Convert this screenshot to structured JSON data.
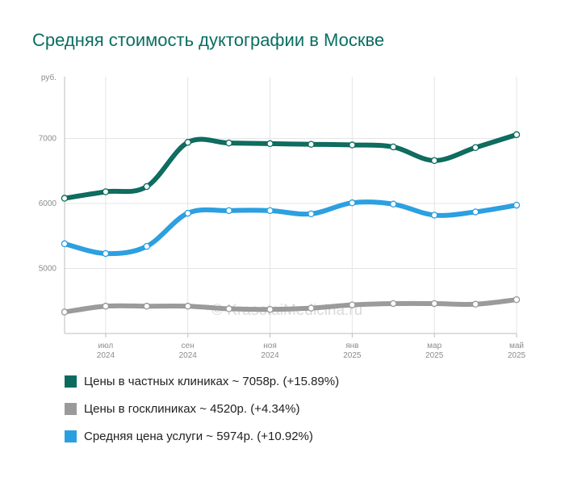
{
  "title": "Средняя стоимость дуктографии в Москве",
  "watermark": "© KrasotaiMedicina.ru",
  "chart_data": {
    "type": "line",
    "title": "Средняя стоимость дуктографии в Москве",
    "ylabel": "руб.",
    "ylim": [
      4000,
      7950
    ],
    "yticks": [
      5000,
      6000,
      7000
    ],
    "grid": true,
    "x": [
      "2024-06",
      "2024-07",
      "2024-08",
      "2024-09",
      "2024-10",
      "2024-11",
      "2024-12",
      "2025-01",
      "2025-02",
      "2025-03",
      "2025-04",
      "2025-05"
    ],
    "xtick_labels": [
      {
        "index": 1,
        "month": "июл",
        "year": "2024"
      },
      {
        "index": 3,
        "month": "сен",
        "year": "2024"
      },
      {
        "index": 5,
        "month": "ноя",
        "year": "2024"
      },
      {
        "index": 7,
        "month": "янв",
        "year": "2025"
      },
      {
        "index": 9,
        "month": "мар",
        "year": "2025"
      },
      {
        "index": 11,
        "month": "май",
        "year": "2025"
      }
    ],
    "series": [
      {
        "name": "Цены в частных клиниках",
        "color": "#0d6b5e",
        "values": [
          6080,
          6180,
          6260,
          6940,
          6930,
          6920,
          6910,
          6900,
          6870,
          6660,
          6860,
          7058
        ]
      },
      {
        "name": "Цены в госклиниках",
        "color": "#9a9a9a",
        "values": [
          4330,
          4420,
          4420,
          4420,
          4380,
          4370,
          4390,
          4440,
          4460,
          4460,
          4450,
          4520
        ]
      },
      {
        "name": "Средняя цена услуги",
        "color": "#2a9fe0",
        "values": [
          5380,
          5230,
          5340,
          5850,
          5890,
          5890,
          5840,
          6010,
          5990,
          5820,
          5870,
          5974
        ]
      }
    ],
    "legend_position": "bottom-left"
  },
  "legend": [
    {
      "text": "Цены в частных клиниках ~ 7058р. (+15.89%)",
      "color": "#0d6b5e"
    },
    {
      "text": "Цены в госклиниках ~ 4520р. (+4.34%)",
      "color": "#9a9a9a"
    },
    {
      "text": "Средняя цена услуги ~ 5974р. (+10.92%)",
      "color": "#2a9fe0"
    }
  ]
}
